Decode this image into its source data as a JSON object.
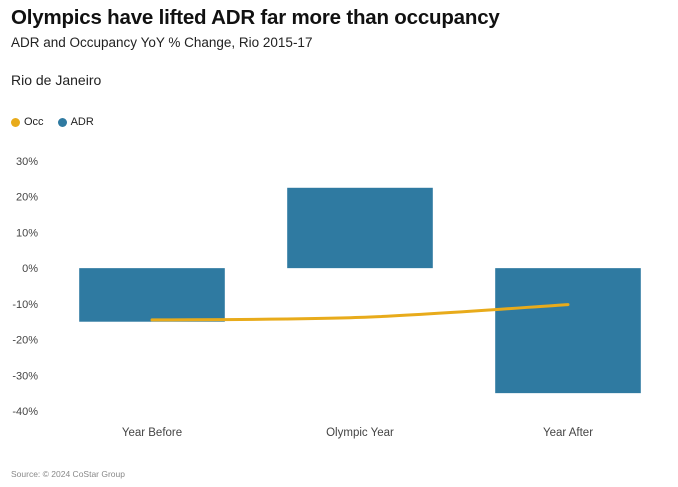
{
  "title": "Olympics have lifted ADR far more than occupancy",
  "subtitle": "ADR and Occupancy YoY % Change, Rio 2015-17",
  "panel_label": "Rio de Janeiro",
  "source": "Source: © 2024 CoStar Group",
  "colors": {
    "occ": "#e8ab1b",
    "adr": "#2f7aa1"
  },
  "legend": [
    {
      "key": "occ",
      "label": "Occ"
    },
    {
      "key": "adr",
      "label": "ADR"
    }
  ],
  "chart_data": {
    "type": "bar",
    "categories": [
      "Year Before",
      "Olympic Year",
      "Year After"
    ],
    "series": [
      {
        "name": "ADR",
        "type": "bar",
        "values": [
          -15,
          22.5,
          -35
        ]
      },
      {
        "name": "Occ",
        "type": "line",
        "values": [
          -14.5,
          -13.8,
          -10.2
        ]
      }
    ],
    "ylim": [
      -40,
      30
    ],
    "yticks": [
      30,
      20,
      10,
      0,
      -10,
      -20,
      -30,
      -40
    ],
    "ytick_labels": [
      "30%",
      "20%",
      "10%",
      "0%",
      "-10%",
      "-20%",
      "-30%",
      "-40%"
    ],
    "grid": false
  }
}
